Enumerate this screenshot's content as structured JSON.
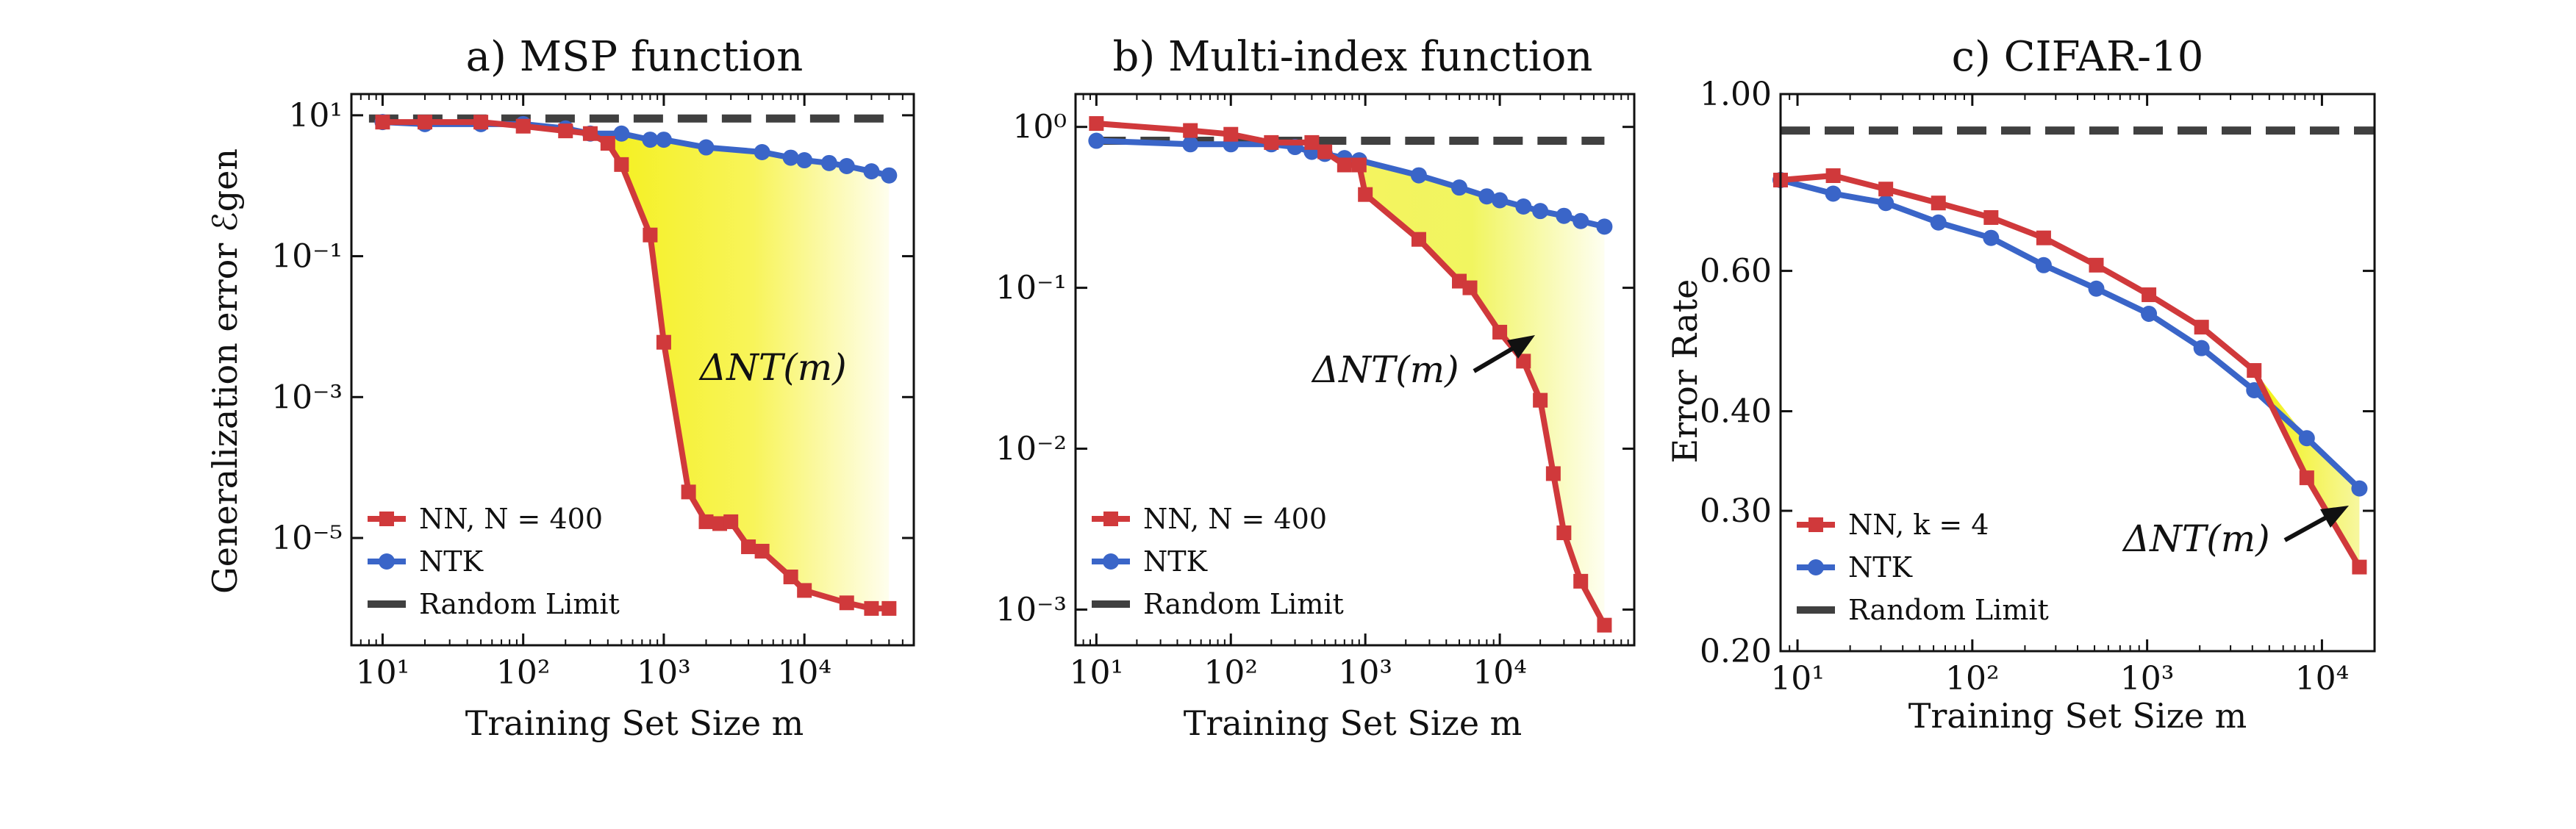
{
  "chart_data": [
    {
      "type": "line",
      "panel": "a",
      "title": "a) MSP function",
      "xlabel": "Training Set Size m",
      "ylabel": "Generalization error ℰgen",
      "xscale": "log",
      "yscale": "log",
      "xlim": [
        6,
        60000
      ],
      "ylim": [
        3e-07,
        20
      ],
      "xticks": [
        10,
        100,
        1000,
        10000
      ],
      "xtick_labels": [
        "10¹",
        "10²",
        "10³",
        "10⁴"
      ],
      "yticks": [
        10,
        0.1,
        0.001,
        1e-05
      ],
      "ytick_labels": [
        "10¹",
        "10⁻¹",
        "10⁻³",
        "10⁻⁵"
      ],
      "series": [
        {
          "name": "NN, N = 400",
          "color": "#d0393b",
          "marker": "square",
          "x": [
            10,
            20,
            50,
            100,
            200,
            300,
            400,
            500,
            800,
            1000,
            1500,
            2000,
            2500,
            3000,
            4000,
            5000,
            8000,
            10000,
            20000,
            30000,
            40000
          ],
          "y": [
            8,
            8,
            8,
            7,
            6,
            5.5,
            4,
            2,
            0.2,
            0.006,
            4.5e-05,
            1.7e-05,
            1.6e-05,
            1.7e-05,
            7.5e-06,
            6.5e-06,
            2.8e-06,
            1.8e-06,
            1.2e-06,
            1e-06,
            1e-06
          ]
        },
        {
          "name": "NTK",
          "color": "#3a65c8",
          "marker": "circle",
          "x": [
            10,
            20,
            50,
            100,
            200,
            300,
            500,
            800,
            1000,
            2000,
            5000,
            8000,
            10000,
            15000,
            20000,
            30000,
            40000
          ],
          "y": [
            8,
            7.5,
            7.5,
            7.5,
            6.5,
            5.5,
            5.5,
            4.5,
            4.5,
            3.5,
            3,
            2.5,
            2.3,
            2.1,
            1.9,
            1.6,
            1.4
          ]
        },
        {
          "name": "Random Limit",
          "color": "#404040",
          "style": "dashed",
          "x": [
            8,
            40000
          ],
          "y": [
            9,
            9
          ]
        }
      ],
      "legend": [
        "NN, N = 400",
        "NTK",
        "Random Limit"
      ],
      "legend_position": "lower-left",
      "annotation": "ΔNT(m)",
      "shading": "yellow gradient between NN and NTK curves"
    },
    {
      "type": "line",
      "panel": "b",
      "title": "b) Multi-index function",
      "xlabel": "Training Set Size m",
      "ylabel": "",
      "xscale": "log",
      "yscale": "log",
      "xlim": [
        7,
        100000
      ],
      "ylim": [
        0.0006,
        1.6
      ],
      "xticks": [
        10,
        100,
        1000,
        10000
      ],
      "xtick_labels": [
        "10¹",
        "10²",
        "10³",
        "10⁴"
      ],
      "yticks": [
        1,
        0.1,
        0.01,
        0.001
      ],
      "ytick_labels": [
        "10⁰",
        "10⁻¹",
        "10⁻²",
        "10⁻³"
      ],
      "series": [
        {
          "name": "NN, N = 400",
          "color": "#d0393b",
          "marker": "square",
          "x": [
            10,
            50,
            100,
            200,
            400,
            500,
            700,
            900,
            1000,
            2500,
            5000,
            6000,
            10000,
            15000,
            20000,
            25000,
            30000,
            40000,
            60000
          ],
          "y": [
            1.05,
            0.95,
            0.9,
            0.8,
            0.8,
            0.7,
            0.58,
            0.58,
            0.38,
            0.2,
            0.11,
            0.1,
            0.053,
            0.035,
            0.02,
            0.007,
            0.003,
            0.0015,
            0.0008
          ]
        },
        {
          "name": "NTK",
          "color": "#3a65c8",
          "marker": "circle",
          "x": [
            10,
            50,
            100,
            200,
            300,
            400,
            500,
            700,
            900,
            2500,
            5000,
            8000,
            10000,
            15000,
            20000,
            30000,
            40000,
            60000
          ],
          "y": [
            0.82,
            0.78,
            0.78,
            0.78,
            0.75,
            0.7,
            0.68,
            0.64,
            0.62,
            0.5,
            0.42,
            0.37,
            0.35,
            0.32,
            0.3,
            0.28,
            0.26,
            0.24
          ]
        },
        {
          "name": "Random Limit",
          "color": "#404040",
          "style": "dashed",
          "x": [
            10,
            60000
          ],
          "y": [
            0.82,
            0.82
          ]
        }
      ],
      "legend": [
        "NN, N = 400",
        "NTK",
        "Random Limit"
      ],
      "legend_position": "lower-left",
      "annotation": "ΔNT(m)",
      "shading": "yellow gradient between NN and NTK curves"
    },
    {
      "type": "line",
      "panel": "c",
      "title": "c) CIFAR-10",
      "xlabel": "Training Set Size m",
      "ylabel": "Error Rate",
      "xscale": "log",
      "yscale": "log",
      "xlim": [
        8,
        20000
      ],
      "ylim": [
        0.2,
        1.0
      ],
      "xticks": [
        10,
        100,
        1000,
        10000
      ],
      "xtick_labels": [
        "10¹",
        "10²",
        "10³",
        "10⁴"
      ],
      "yticks": [
        1.0,
        0.6,
        0.4,
        0.3,
        0.2
      ],
      "ytick_labels": [
        "1.00",
        "0.60",
        "0.40",
        "0.30",
        "0.20"
      ],
      "series": [
        {
          "name": "NN, k = 4",
          "color": "#d0393b",
          "marker": "square",
          "x": [
            8,
            16,
            32,
            64,
            128,
            256,
            512,
            1024,
            2048,
            4096,
            8192,
            16384
          ],
          "y": [
            0.78,
            0.79,
            0.76,
            0.73,
            0.7,
            0.66,
            0.61,
            0.56,
            0.51,
            0.45,
            0.33,
            0.255
          ]
        },
        {
          "name": "NTK",
          "color": "#3a65c8",
          "marker": "circle",
          "x": [
            8,
            16,
            32,
            64,
            128,
            256,
            512,
            1024,
            2048,
            4096,
            8192,
            16384
          ],
          "y": [
            0.78,
            0.75,
            0.73,
            0.69,
            0.66,
            0.61,
            0.57,
            0.53,
            0.48,
            0.425,
            0.37,
            0.32
          ]
        },
        {
          "name": "Random Limit",
          "color": "#404040",
          "style": "dashed",
          "x": [
            8,
            20000
          ],
          "y": [
            0.9,
            0.9
          ]
        }
      ],
      "legend": [
        "NN, k = 4",
        "NTK",
        "Random Limit"
      ],
      "legend_position": "lower-left",
      "annotation": "ΔNT(m)",
      "shading": "yellow region where NN error is below NTK"
    }
  ]
}
